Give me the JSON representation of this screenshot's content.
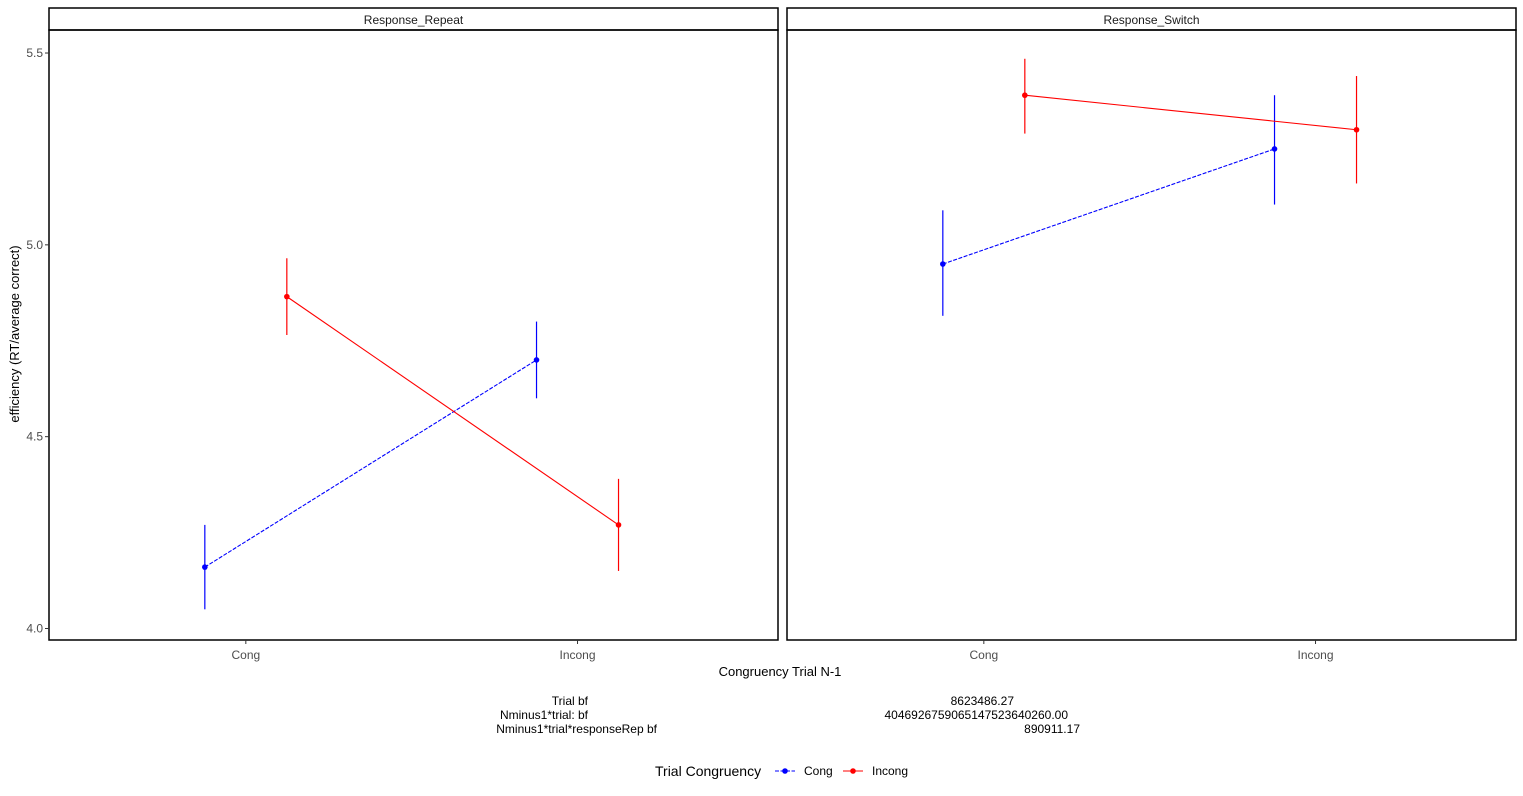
{
  "chart_data": {
    "type": "line",
    "ylabel": "efficiency (RT/average correct)",
    "xlabel": "Congruency Trial N-1",
    "ylim": [
      3.97,
      5.56
    ],
    "yticks": [
      "4.0",
      "4.5",
      "5.0",
      "5.5"
    ],
    "categories": [
      "Cong",
      "Incong"
    ],
    "grid": false,
    "legend": {
      "title": "Trial Congruency",
      "position": "bottom"
    },
    "series_styles": [
      {
        "name": "Cong",
        "color": "#0000ff",
        "dash": "dashed"
      },
      {
        "name": "Incong",
        "color": "#ff0000",
        "dash": "solid"
      }
    ],
    "panels": [
      {
        "title": "Response_Repeat",
        "series": [
          {
            "name": "Cong",
            "values": [
              4.16,
              4.7
            ],
            "lower": [
              4.05,
              4.6
            ],
            "upper": [
              4.27,
              4.8
            ]
          },
          {
            "name": "Incong",
            "values": [
              4.865,
              4.27
            ],
            "lower": [
              4.765,
              4.15
            ],
            "upper": [
              4.965,
              4.39
            ]
          }
        ]
      },
      {
        "title": "Response_Switch",
        "series": [
          {
            "name": "Cong",
            "values": [
              4.95,
              5.25
            ],
            "lower": [
              4.815,
              5.105
            ],
            "upper": [
              5.09,
              5.39
            ]
          },
          {
            "name": "Incong",
            "values": [
              5.39,
              5.3
            ],
            "lower": [
              5.29,
              5.16
            ],
            "upper": [
              5.485,
              5.44
            ]
          }
        ]
      }
    ],
    "annotations": [
      {
        "label": "Trial bf",
        "value": "8623486.27"
      },
      {
        "label": "Nminus1*trial: bf",
        "value": "40469267590651475236402​60.00"
      },
      {
        "label": "Nminus1*trial*responseRep bf",
        "value": "890911.17"
      }
    ]
  }
}
